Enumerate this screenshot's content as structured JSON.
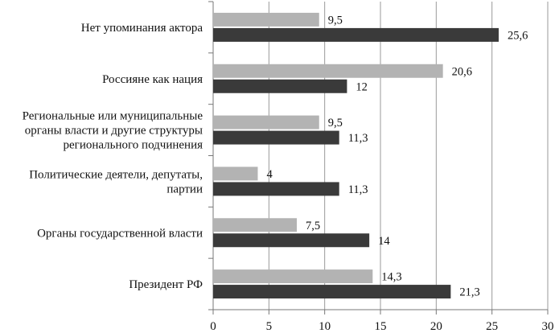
{
  "chart_data": {
    "type": "bar",
    "orientation": "horizontal",
    "title": "",
    "xlabel": "",
    "ylabel": "",
    "categories": [
      [
        "Нет упоминания актора"
      ],
      [
        "Россияне как нация"
      ],
      [
        "Региональные или муниципальные",
        "органы власти и  другие структуры",
        "регионального подчинения"
      ],
      [
        "Политические деятели, депутаты,",
        "партии"
      ],
      [
        "Органы государственной власти"
      ],
      [
        "Президент РФ"
      ]
    ],
    "series": [
      {
        "values": [
          9.5,
          20.6,
          9.5,
          4,
          7.5,
          14.3
        ],
        "labels": [
          "9,5",
          "20,6",
          "9,5",
          "4",
          "7,5",
          "14,3"
        ],
        "color": "#b3b3b3"
      },
      {
        "values": [
          25.6,
          12,
          11.3,
          11.3,
          14,
          21.3
        ],
        "labels": [
          "25,6",
          "12",
          "11,3",
          "11,3",
          "14",
          "21,3"
        ],
        "color": "#3a3a3a"
      }
    ],
    "xlim": [
      0,
      30
    ],
    "xticks": [
      0,
      5,
      10,
      15,
      20,
      25,
      30
    ],
    "grid": "vertical",
    "legend": "none"
  }
}
